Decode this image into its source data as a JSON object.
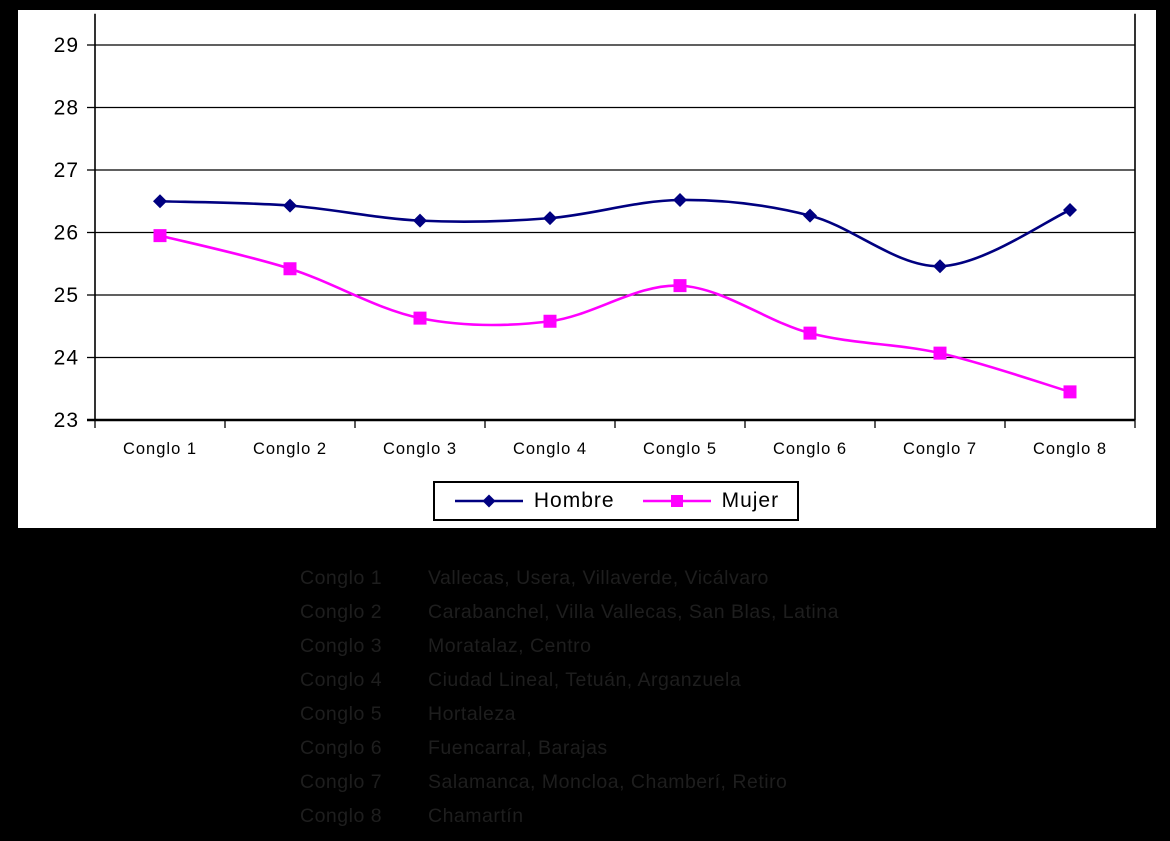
{
  "chart_data": {
    "type": "line",
    "title": "",
    "xlabel": "",
    "ylabel": "",
    "categories": [
      "Conglo 1",
      "Conglo 2",
      "Conglo 3",
      "Conglo 4",
      "Conglo 5",
      "Conglo 6",
      "Conglo 7",
      "Conglo 8"
    ],
    "series": [
      {
        "name": "Hombre",
        "color": "#000080",
        "marker": "diamond",
        "values": [
          26.5,
          26.43,
          26.19,
          26.23,
          26.52,
          26.27,
          25.46,
          26.36
        ]
      },
      {
        "name": "Mujer",
        "color": "#FF00FF",
        "marker": "square",
        "values": [
          25.95,
          25.42,
          24.63,
          24.58,
          25.15,
          24.39,
          24.07,
          23.45
        ]
      }
    ],
    "ylim": [
      23,
      29
    ],
    "yticks": [
      29,
      28,
      27,
      26,
      25,
      24,
      23
    ],
    "grid": true,
    "smoothed_lines": true,
    "legend_position": "bottom-center"
  },
  "notes": [
    {
      "label": "Conglo 1",
      "text": "Vallecas, Usera, Villaverde, Vicálvaro"
    },
    {
      "label": "Conglo 2",
      "text": "Carabanchel, Villa Vallecas, San Blas, Latina"
    },
    {
      "label": "Conglo 3",
      "text": "Moratalaz, Centro"
    },
    {
      "label": "Conglo 4",
      "text": "Ciudad Lineal, Tetuán, Arganzuela"
    },
    {
      "label": "Conglo 5",
      "text": "Hortaleza"
    },
    {
      "label": "Conglo 6",
      "text": "Fuencarral, Barajas"
    },
    {
      "label": "Conglo 7",
      "text": "Salamanca, Moncloa, Chamberí, Retiro"
    },
    {
      "label": "Conglo 8",
      "text": "Chamartín"
    }
  ],
  "colors": {
    "page_bg": "#000000",
    "chart_bg": "#FFFFFF",
    "axis": "#000000",
    "hombre": "#000080",
    "mujer": "#FF00FF",
    "notes_text": "#1E1E1E"
  }
}
